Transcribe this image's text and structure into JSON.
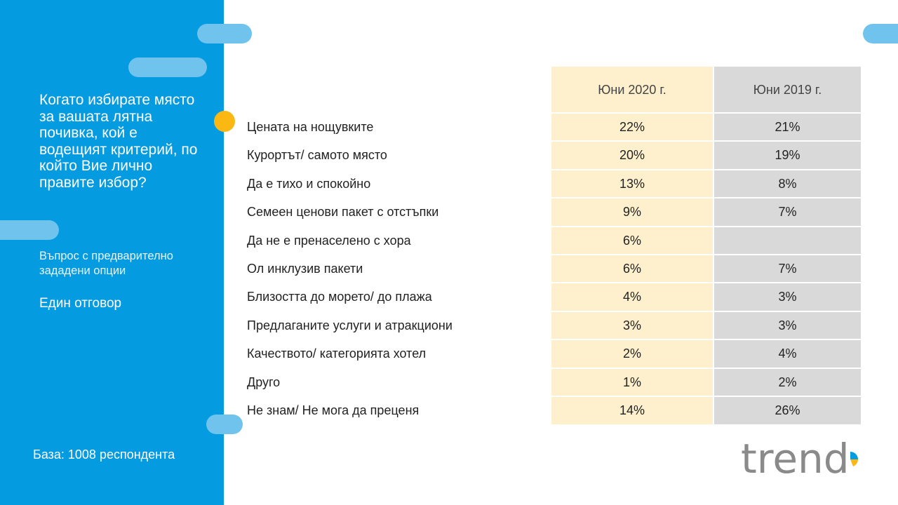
{
  "sidebar": {
    "question": "Когато избирате място за вашата лятна почивка, кой е водещият критерий, по който Вие лично правите избор?",
    "note": "Въпрос с предварително зададени опции",
    "answer_type": "Един отговор",
    "base": "База: 1008 респондента",
    "colors": {
      "background": "#049be0",
      "pill": "#70c3ec",
      "dot": "#fbb812"
    }
  },
  "logo": {
    "text": "trend",
    "icon": "pie-chart-icon",
    "colors": {
      "text": "#8a8a8a",
      "slice_blue": "#049be0",
      "slice_yellow": "#fbb812"
    }
  },
  "chart_data": {
    "type": "table",
    "columns": [
      "Юни 2020 г.",
      "Юни 2019 г."
    ],
    "column_colors": [
      "#fef0cc",
      "#d9d9d9"
    ],
    "rows": [
      {
        "label": "Цената на нощувките",
        "values": [
          "22%",
          "21%"
        ]
      },
      {
        "label": "Курортът/ самото място",
        "values": [
          "20%",
          "19%"
        ]
      },
      {
        "label": "Да е тихо и спокойно",
        "values": [
          "13%",
          "8%"
        ]
      },
      {
        "label": "Семеен ценови пакет с отстъпки",
        "values": [
          "9%",
          "7%"
        ]
      },
      {
        "label": "Да не е пренаселено с хора",
        "values": [
          "6%",
          ""
        ]
      },
      {
        "label": "Ол инклузив пакети",
        "values": [
          "6%",
          "7%"
        ]
      },
      {
        "label": "Близостта до морето/ до плажа",
        "values": [
          "4%",
          "3%"
        ]
      },
      {
        "label": "Предлаганите услуги и атракциони",
        "values": [
          "3%",
          "3%"
        ]
      },
      {
        "label": "Качеството/ категорията хотел",
        "values": [
          "2%",
          "4%"
        ]
      },
      {
        "label": "Друго",
        "values": [
          "1%",
          "2%"
        ]
      },
      {
        "label": "Не знам/ Не мога да преценя",
        "values": [
          "14%",
          "26%"
        ]
      }
    ]
  }
}
